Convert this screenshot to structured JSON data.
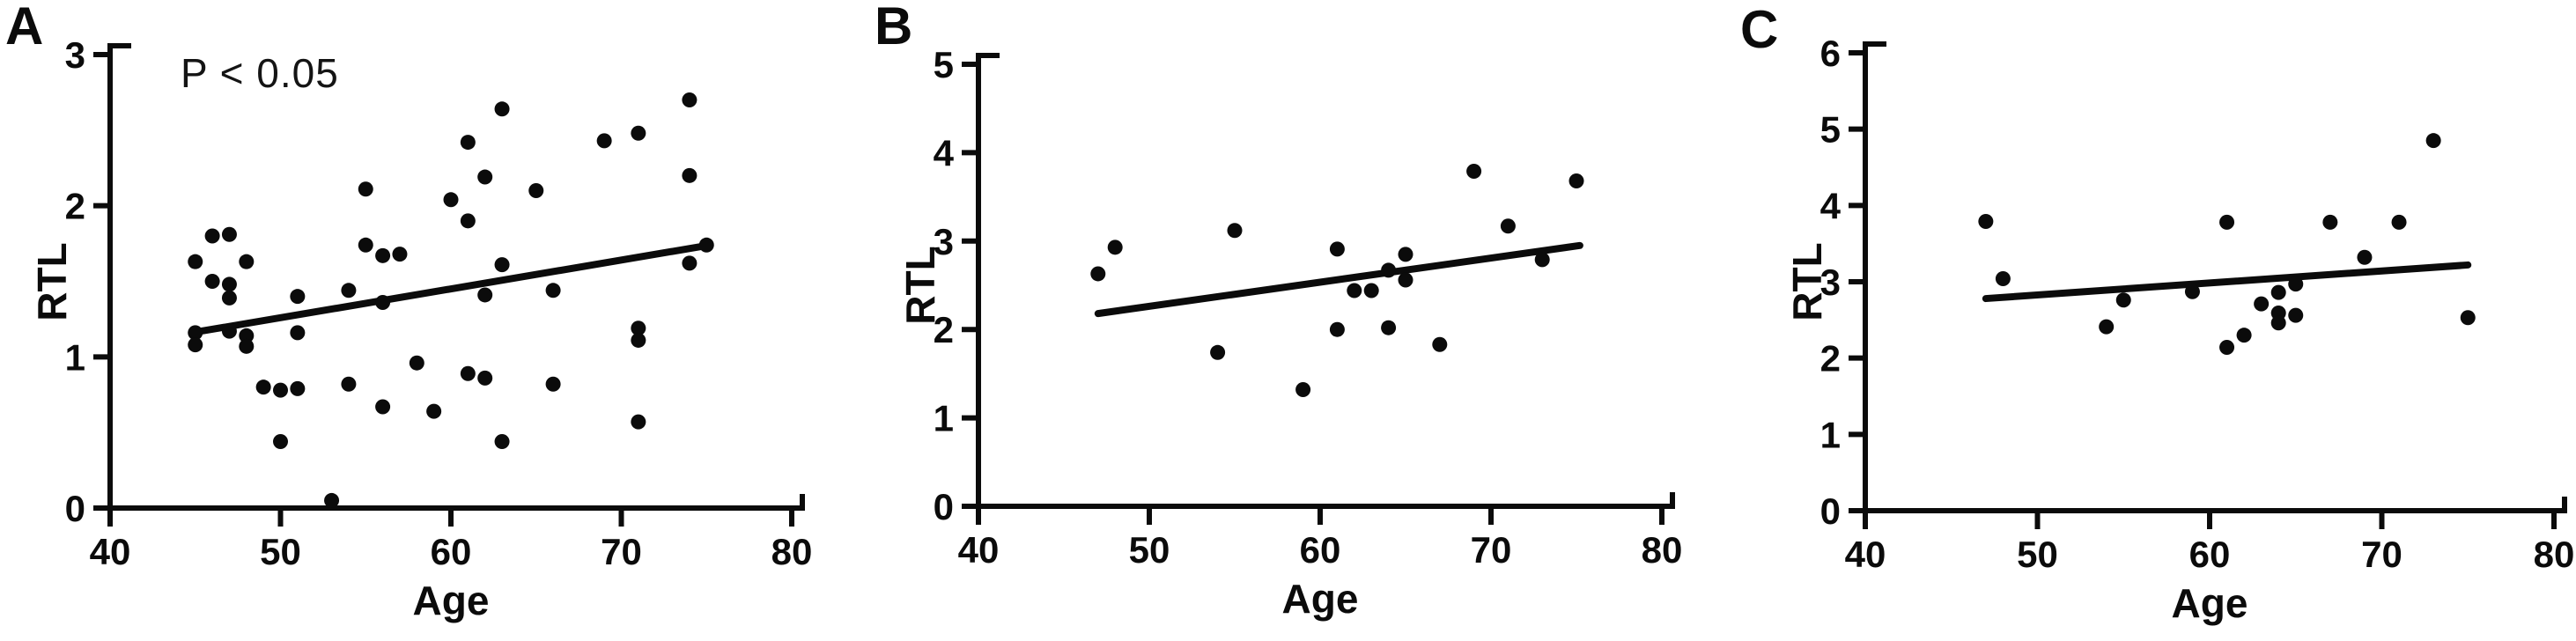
{
  "chart_data": [
    {
      "type": "scatter",
      "panel_label": "A",
      "annotation": "P < 0.05",
      "xlabel": "Age",
      "ylabel": "RTL",
      "xlim": [
        40,
        80
      ],
      "ylim": [
        0,
        3
      ],
      "xticks": [
        40,
        50,
        60,
        70,
        80
      ],
      "yticks": [
        0,
        1,
        2,
        3
      ],
      "legend": "none",
      "grid": false,
      "points": [
        [
          45,
          1.63
        ],
        [
          45,
          1.16
        ],
        [
          45,
          1.08
        ],
        [
          46,
          1.8
        ],
        [
          46,
          1.5
        ],
        [
          47,
          1.81
        ],
        [
          47,
          1.48
        ],
        [
          47,
          1.39
        ],
        [
          47,
          1.17
        ],
        [
          48,
          1.63
        ],
        [
          48,
          1.14
        ],
        [
          48,
          1.07
        ],
        [
          49,
          0.8
        ],
        [
          50,
          0.78
        ],
        [
          50,
          0.44
        ],
        [
          51,
          1.4
        ],
        [
          51,
          1.16
        ],
        [
          51,
          0.79
        ],
        [
          53,
          0.05
        ],
        [
          54,
          1.44
        ],
        [
          54,
          0.82
        ],
        [
          55,
          2.11
        ],
        [
          55,
          1.74
        ],
        [
          56,
          1.67
        ],
        [
          56,
          1.36
        ],
        [
          56,
          0.67
        ],
        [
          57,
          1.68
        ],
        [
          58,
          0.96
        ],
        [
          59,
          0.64
        ],
        [
          60,
          2.04
        ],
        [
          61,
          2.42
        ],
        [
          61,
          1.9
        ],
        [
          61,
          0.89
        ],
        [
          62,
          2.19
        ],
        [
          62,
          1.41
        ],
        [
          62,
          0.86
        ],
        [
          63,
          2.64
        ],
        [
          63,
          1.61
        ],
        [
          63,
          0.44
        ],
        [
          65,
          2.1
        ],
        [
          66,
          1.44
        ],
        [
          66,
          0.82
        ],
        [
          69,
          2.43
        ],
        [
          71,
          2.48
        ],
        [
          71,
          1.19
        ],
        [
          71,
          1.11
        ],
        [
          71,
          0.57
        ],
        [
          74,
          2.7
        ],
        [
          74,
          2.2
        ],
        [
          74,
          1.62
        ],
        [
          75,
          1.74
        ]
      ],
      "trendline": {
        "x1": 44.8,
        "y1": 1.16,
        "x2": 75.2,
        "y2": 1.74
      }
    },
    {
      "type": "scatter",
      "panel_label": "B",
      "annotation": "",
      "xlabel": "Age",
      "ylabel": "RTL",
      "xlim": [
        40,
        80
      ],
      "ylim": [
        0,
        5
      ],
      "xticks": [
        40,
        50,
        60,
        70,
        80
      ],
      "yticks": [
        0,
        1,
        2,
        3,
        4,
        5
      ],
      "legend": "none",
      "grid": false,
      "points": [
        [
          47,
          2.63
        ],
        [
          48,
          2.93
        ],
        [
          54,
          1.74
        ],
        [
          55,
          3.12
        ],
        [
          59,
          1.32
        ],
        [
          61,
          2.91
        ],
        [
          61,
          2.0
        ],
        [
          62,
          2.44
        ],
        [
          63,
          2.44
        ],
        [
          64,
          2.67
        ],
        [
          64,
          2.02
        ],
        [
          65,
          2.85
        ],
        [
          65,
          2.56
        ],
        [
          67,
          1.83
        ],
        [
          69,
          3.79
        ],
        [
          71,
          3.17
        ],
        [
          73,
          2.79
        ],
        [
          75,
          3.68
        ]
      ],
      "trendline": {
        "x1": 47.0,
        "y1": 2.18,
        "x2": 75.2,
        "y2": 2.95
      }
    },
    {
      "type": "scatter",
      "panel_label": "C",
      "annotation": "",
      "xlabel": "Age",
      "ylabel": "RTL",
      "xlim": [
        40,
        80
      ],
      "ylim": [
        0,
        6
      ],
      "xticks": [
        40,
        50,
        60,
        70,
        80
      ],
      "yticks": [
        0,
        1,
        2,
        3,
        4,
        5,
        6
      ],
      "legend": "none",
      "grid": false,
      "points": [
        [
          47,
          3.79
        ],
        [
          48,
          3.04
        ],
        [
          54,
          2.41
        ],
        [
          55,
          2.76
        ],
        [
          59,
          2.87
        ],
        [
          61,
          3.78
        ],
        [
          61,
          2.14
        ],
        [
          62,
          2.3
        ],
        [
          63,
          2.71
        ],
        [
          64,
          2.86
        ],
        [
          64,
          2.59
        ],
        [
          64,
          2.46
        ],
        [
          65,
          2.97
        ],
        [
          65,
          2.56
        ],
        [
          67,
          3.78
        ],
        [
          69,
          3.32
        ],
        [
          71,
          3.78
        ],
        [
          73,
          4.85
        ],
        [
          75,
          2.53
        ]
      ],
      "trendline": {
        "x1": 47.0,
        "y1": 2.78,
        "x2": 75.0,
        "y2": 3.22
      }
    }
  ],
  "colors": {
    "ink": "#0b0b0b",
    "background": "#ffffff"
  }
}
